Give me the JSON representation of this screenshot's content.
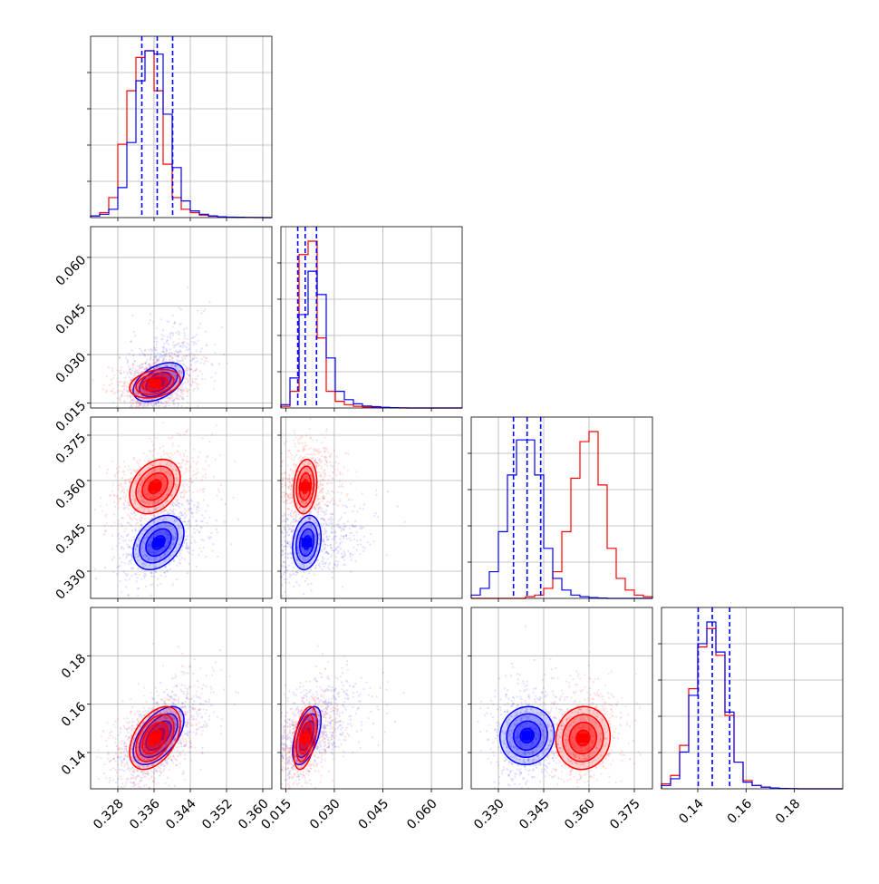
{
  "chart_data": {
    "type": "corner",
    "grid": true,
    "colors": {
      "series_a": "#0000ff",
      "series_b": "#ff0000"
    },
    "quantile_line_style": "dashed",
    "parameters": [
      {
        "index": 0,
        "range": [
          0.322,
          0.362
        ],
        "tick_labels": [
          "0.328",
          "0.336",
          "0.344",
          "0.352",
          "0.360"
        ],
        "tick_values": [
          0.328,
          0.336,
          0.344,
          0.352,
          0.36
        ]
      },
      {
        "index": 1,
        "range": [
          0.0135,
          0.0695
        ],
        "tick_labels": [
          "0.015",
          "0.030",
          "0.045",
          "0.060"
        ],
        "tick_values": [
          0.015,
          0.03,
          0.045,
          0.06
        ]
      },
      {
        "index": 2,
        "range": [
          0.321,
          0.381
        ],
        "tick_labels": [
          "0.330",
          "0.345",
          "0.360",
          "0.375"
        ],
        "tick_values": [
          0.33,
          0.345,
          0.36,
          0.375
        ]
      },
      {
        "index": 3,
        "range": [
          0.125,
          0.2
        ],
        "tick_labels": [
          "0.14",
          "0.16",
          "0.18"
        ],
        "tick_values": [
          0.14,
          0.16,
          0.18
        ]
      }
    ],
    "histograms": [
      {
        "param": 0,
        "bin_edges": [
          0.322,
          0.324,
          0.326,
          0.328,
          0.33,
          0.332,
          0.334,
          0.336,
          0.338,
          0.34,
          0.342,
          0.344,
          0.346,
          0.348,
          0.35,
          0.352,
          0.354,
          0.356,
          0.358,
          0.36,
          0.362
        ],
        "series_a_counts": [
          0.01,
          0.02,
          0.05,
          0.18,
          0.45,
          0.82,
          1.0,
          0.98,
          0.62,
          0.3,
          0.1,
          0.04,
          0.02,
          0.01,
          0.005,
          0.003,
          0.002,
          0.001,
          0.001,
          0.0
        ],
        "series_b_counts": [
          0.01,
          0.03,
          0.12,
          0.44,
          0.76,
          0.96,
          1.0,
          0.76,
          0.32,
          0.12,
          0.05,
          0.03,
          0.015,
          0.008,
          0.004,
          0.002,
          0.001,
          0.001,
          0.0,
          0.0
        ],
        "quantiles": [
          0.3333,
          0.3367,
          0.3401
        ]
      },
      {
        "param": 1,
        "bin_edges": [
          0.0135,
          0.0163,
          0.0191,
          0.0219,
          0.0247,
          0.0275,
          0.0303,
          0.0331,
          0.0359,
          0.0387,
          0.0415,
          0.0443,
          0.0471,
          0.0499,
          0.0527,
          0.0555,
          0.0583,
          0.0611,
          0.0639,
          0.0667,
          0.0695
        ],
        "series_a_counts": [
          0.02,
          0.18,
          0.56,
          0.82,
          0.68,
          0.3,
          0.1,
          0.05,
          0.025,
          0.012,
          0.008,
          0.004,
          0.002,
          0.001,
          0.0,
          0.0,
          0.0,
          0.0,
          0.0,
          0.0
        ],
        "series_b_counts": [
          0.01,
          0.1,
          0.92,
          1.0,
          0.42,
          0.1,
          0.04,
          0.02,
          0.01,
          0.006,
          0.003,
          0.002,
          0.001,
          0.0,
          0.0,
          0.0,
          0.0,
          0.0,
          0.0,
          0.0
        ],
        "quantiles": [
          0.0187,
          0.021,
          0.0245
        ]
      },
      {
        "param": 2,
        "bin_edges": [
          0.321,
          0.324,
          0.327,
          0.33,
          0.333,
          0.336,
          0.339,
          0.342,
          0.345,
          0.348,
          0.351,
          0.354,
          0.357,
          0.36,
          0.363,
          0.366,
          0.369,
          0.372,
          0.375,
          0.378,
          0.381
        ],
        "series_a_counts": [
          0.02,
          0.06,
          0.16,
          0.4,
          0.74,
          0.95,
          0.95,
          0.74,
          0.3,
          0.12,
          0.05,
          0.02,
          0.01,
          0.005,
          0.002,
          0.0,
          0.0,
          0.0,
          0.0,
          0.0
        ],
        "series_b_counts": [
          0.0,
          0.0,
          0.0,
          0.0,
          0.0,
          0.0,
          0.01,
          0.02,
          0.06,
          0.16,
          0.4,
          0.72,
          0.94,
          1.0,
          0.68,
          0.3,
          0.12,
          0.05,
          0.02,
          0.01
        ],
        "quantiles": [
          0.335,
          0.3395,
          0.344
        ]
      },
      {
        "param": 3,
        "bin_edges": [
          0.125,
          0.12875,
          0.1325,
          0.13625,
          0.14,
          0.14375,
          0.1475,
          0.15125,
          0.155,
          0.15875,
          0.1625,
          0.16625,
          0.17,
          0.17375,
          0.1775,
          0.18125,
          0.185,
          0.18875,
          0.1925,
          0.19625,
          0.2
        ],
        "series_a_counts": [
          0.02,
          0.06,
          0.22,
          0.56,
          0.87,
          1.0,
          0.82,
          0.46,
          0.16,
          0.04,
          0.02,
          0.01,
          0.005,
          0.002,
          0.001,
          0.0,
          0.0,
          0.0,
          0.0,
          0.0
        ],
        "series_b_counts": [
          0.03,
          0.08,
          0.26,
          0.6,
          0.85,
          0.96,
          0.8,
          0.44,
          0.16,
          0.05,
          0.02,
          0.01,
          0.005,
          0.002,
          0.001,
          0.0,
          0.0,
          0.0,
          0.0,
          0.0
        ],
        "quantiles": [
          0.1402,
          0.146,
          0.1532
        ]
      }
    ],
    "pairs": [
      {
        "x_param": 0,
        "y_param": 1,
        "series_a": {
          "center": [
            0.337,
            0.0215
          ],
          "sd": [
            0.0028,
            0.003
          ],
          "corr": 0.45,
          "scatter_halo": [
            0.0045,
            0.0085
          ]
        },
        "series_b": {
          "center": [
            0.3362,
            0.021
          ],
          "sd": [
            0.0028,
            0.0022
          ],
          "corr": 0.3,
          "scatter_halo": [
            0.0045,
            0.0045
          ]
        }
      },
      {
        "x_param": 0,
        "y_param": 2,
        "series_a": {
          "center": [
            0.337,
            0.3395
          ],
          "sd": [
            0.0028,
            0.0045
          ],
          "corr": 0.35,
          "scatter_halo": [
            0.005,
            0.0065
          ]
        },
        "series_b": {
          "center": [
            0.3362,
            0.358
          ],
          "sd": [
            0.0028,
            0.0045
          ],
          "corr": 0.3,
          "scatter_halo": [
            0.005,
            0.0065
          ]
        }
      },
      {
        "x_param": 1,
        "y_param": 2,
        "series_a": {
          "center": [
            0.0215,
            0.3395
          ],
          "sd": [
            0.0022,
            0.0045
          ],
          "corr": 0.2,
          "scatter_halo": [
            0.0085,
            0.0065
          ]
        },
        "series_b": {
          "center": [
            0.021,
            0.358
          ],
          "sd": [
            0.0018,
            0.0045
          ],
          "corr": 0.15,
          "scatter_halo": [
            0.0045,
            0.0065
          ]
        }
      },
      {
        "x_param": 0,
        "y_param": 3,
        "series_a": {
          "center": [
            0.337,
            0.147
          ],
          "sd": [
            0.0028,
            0.006
          ],
          "corr": 0.55,
          "scatter_halo": [
            0.005,
            0.01
          ]
        },
        "series_b": {
          "center": [
            0.3362,
            0.146
          ],
          "sd": [
            0.0028,
            0.0065
          ],
          "corr": 0.45,
          "scatter_halo": [
            0.005,
            0.01
          ]
        }
      },
      {
        "x_param": 1,
        "y_param": 3,
        "series_a": {
          "center": [
            0.0215,
            0.147
          ],
          "sd": [
            0.0022,
            0.006
          ],
          "corr": 0.55,
          "scatter_halo": [
            0.0085,
            0.01
          ]
        },
        "series_b": {
          "center": [
            0.021,
            0.146
          ],
          "sd": [
            0.0018,
            0.0065
          ],
          "corr": 0.45,
          "scatter_halo": [
            0.0045,
            0.01
          ]
        }
      },
      {
        "x_param": 2,
        "y_param": 3,
        "series_a": {
          "center": [
            0.3395,
            0.147
          ],
          "sd": [
            0.0045,
            0.006
          ],
          "corr": 0.05,
          "scatter_halo": [
            0.0065,
            0.01
          ]
        },
        "series_b": {
          "center": [
            0.358,
            0.146
          ],
          "sd": [
            0.0045,
            0.0065
          ],
          "corr": 0.05,
          "scatter_halo": [
            0.0065,
            0.01
          ]
        }
      }
    ]
  }
}
